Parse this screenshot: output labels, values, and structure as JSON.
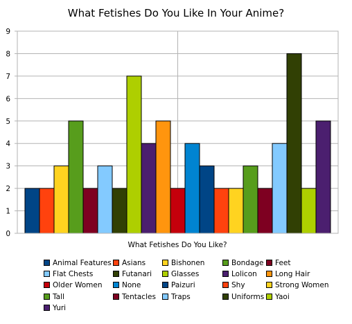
{
  "chart_data": {
    "type": "bar",
    "title": "What Fetishes Do You Like In Your Anime?",
    "xlabel": "What Fetishes Do You Like?",
    "ylabel": "",
    "ylim": [
      0,
      9
    ],
    "yticks": [
      0,
      1,
      2,
      3,
      4,
      5,
      6,
      7,
      8,
      9
    ],
    "grid": true,
    "legend_position": "bottom",
    "categories": [
      "What Fetishes Do You Like?"
    ],
    "series": [
      {
        "name": "Animal Features",
        "values": [
          2
        ],
        "color": "#004586"
      },
      {
        "name": "Asians",
        "values": [
          2
        ],
        "color": "#ff420e"
      },
      {
        "name": "Bishonen",
        "values": [
          3
        ],
        "color": "#ffd320"
      },
      {
        "name": "Bondage",
        "values": [
          5
        ],
        "color": "#579d1c"
      },
      {
        "name": "Feet",
        "values": [
          2
        ],
        "color": "#7e0021"
      },
      {
        "name": "Flat Chests",
        "values": [
          3
        ],
        "color": "#83caff"
      },
      {
        "name": "Futanari",
        "values": [
          2
        ],
        "color": "#314004"
      },
      {
        "name": "Glasses",
        "values": [
          7
        ],
        "color": "#aecf00"
      },
      {
        "name": "Lolicon",
        "values": [
          4
        ],
        "color": "#4b1f6f"
      },
      {
        "name": "Long Hair",
        "values": [
          5
        ],
        "color": "#ff950e"
      },
      {
        "name": "Older Women",
        "values": [
          2
        ],
        "color": "#c5000b"
      },
      {
        "name": "None",
        "values": [
          4
        ],
        "color": "#0084d1"
      },
      {
        "name": "Paizuri",
        "values": [
          3
        ],
        "color": "#004586"
      },
      {
        "name": "Shy",
        "values": [
          2
        ],
        "color": "#ff420e"
      },
      {
        "name": "Strong Women",
        "values": [
          2
        ],
        "color": "#ffd320"
      },
      {
        "name": "Tall",
        "values": [
          3
        ],
        "color": "#579d1c"
      },
      {
        "name": "Tentacles",
        "values": [
          2
        ],
        "color": "#7e0021"
      },
      {
        "name": "Traps",
        "values": [
          4
        ],
        "color": "#83caff"
      },
      {
        "name": "Uniforms",
        "values": [
          8
        ],
        "color": "#314004"
      },
      {
        "name": "Yaoi",
        "values": [
          2
        ],
        "color": "#aecf00"
      },
      {
        "name": "Yuri",
        "values": [
          5
        ],
        "color": "#4b1f6f"
      }
    ]
  }
}
